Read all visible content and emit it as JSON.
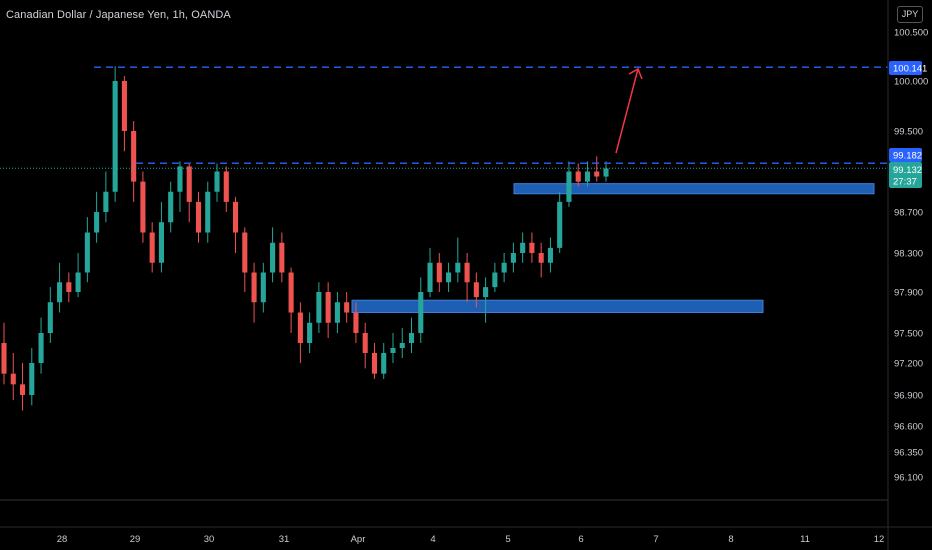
{
  "title": "Canadian Dollar / Japanese Yen, 1h, OANDA",
  "currency_label": "JPY",
  "chart_data": {
    "type": "candlestick",
    "title": "Canadian Dollar / Japanese Yen, 1h, OANDA",
    "y_ticks": [
      100.5,
      100.0,
      99.5,
      98.7,
      98.3,
      97.9,
      97.5,
      97.2,
      96.9,
      96.6,
      96.35,
      96.1
    ],
    "y_tick_labels": [
      "100.500",
      "100.000",
      "99.500",
      "98.700",
      "98.300",
      "97.900",
      "97.500",
      "97.200",
      "96.900",
      "96.600",
      "96.350",
      "96.100"
    ],
    "x_tick_labels": [
      "28",
      "29",
      "30",
      "31",
      "Apr",
      "4",
      "5",
      "6",
      "7",
      "8",
      "11",
      "12"
    ],
    "badges": {
      "high_level": "100.141",
      "resistance_level": "99.182",
      "last_price": "99.132",
      "countdown": "27:37"
    },
    "horizontal_lines": [
      {
        "value": 100.141,
        "style": "dashed",
        "color": "#2962ff"
      },
      {
        "value": 99.182,
        "style": "dashed",
        "color": "#2962ff"
      }
    ],
    "zones": [
      {
        "from_date": "Apr 5",
        "to_date": "Apr 12",
        "low": 98.88,
        "high": 98.98,
        "color": "#1e5fb4"
      },
      {
        "from_date": "Apr 1",
        "to_date": "Apr 8",
        "low": 97.7,
        "high": 97.82,
        "color": "#1e5fb4"
      }
    ],
    "annotation": {
      "type": "arrow",
      "color": "#f23645",
      "direction": "up"
    },
    "colors": {
      "up": "#26a69a",
      "down": "#ef5350",
      "background": "#000000"
    },
    "candles": [
      [
        97.4,
        97.1,
        97.6,
        97.0
      ],
      [
        97.1,
        97.0,
        97.3,
        96.85
      ],
      [
        97.0,
        96.9,
        97.2,
        96.75
      ],
      [
        96.9,
        97.2,
        97.35,
        96.8
      ],
      [
        97.2,
        97.5,
        97.65,
        97.1
      ],
      [
        97.5,
        97.8,
        97.95,
        97.4
      ],
      [
        97.8,
        98.0,
        98.2,
        97.7
      ],
      [
        98.0,
        97.9,
        98.1,
        97.8
      ],
      [
        97.9,
        98.1,
        98.3,
        97.85
      ],
      [
        98.1,
        98.5,
        98.65,
        98.0
      ],
      [
        98.5,
        98.7,
        98.9,
        98.4
      ],
      [
        98.7,
        98.9,
        99.1,
        98.6
      ],
      [
        98.9,
        100.0,
        100.15,
        98.8
      ],
      [
        100.0,
        99.5,
        100.05,
        99.3
      ],
      [
        99.5,
        99.0,
        99.6,
        98.8
      ],
      [
        99.0,
        98.5,
        99.1,
        98.4
      ],
      [
        98.5,
        98.2,
        98.6,
        98.1
      ],
      [
        98.2,
        98.6,
        98.8,
        98.1
      ],
      [
        98.6,
        98.9,
        99.0,
        98.5
      ],
      [
        98.9,
        99.15,
        99.2,
        98.7
      ],
      [
        99.15,
        98.8,
        99.18,
        98.6
      ],
      [
        98.8,
        98.5,
        98.9,
        98.4
      ],
      [
        98.5,
        98.9,
        99.0,
        98.4
      ],
      [
        98.9,
        99.1,
        99.18,
        98.8
      ],
      [
        99.1,
        98.8,
        99.15,
        98.7
      ],
      [
        98.8,
        98.5,
        98.85,
        98.3
      ],
      [
        98.5,
        98.1,
        98.55,
        97.9
      ],
      [
        98.1,
        97.8,
        98.2,
        97.6
      ],
      [
        97.8,
        98.1,
        98.2,
        97.7
      ],
      [
        98.1,
        98.4,
        98.55,
        98.0
      ],
      [
        98.4,
        98.1,
        98.5,
        98.0
      ],
      [
        98.1,
        97.7,
        98.15,
        97.5
      ],
      [
        97.7,
        97.4,
        97.8,
        97.2
      ],
      [
        97.4,
        97.6,
        97.7,
        97.3
      ],
      [
        97.6,
        97.9,
        98.0,
        97.5
      ],
      [
        97.9,
        97.6,
        98.0,
        97.45
      ],
      [
        97.6,
        97.8,
        97.9,
        97.5
      ],
      [
        97.8,
        97.7,
        97.9,
        97.6
      ],
      [
        97.7,
        97.5,
        97.8,
        97.4
      ],
      [
        97.5,
        97.3,
        97.6,
        97.15
      ],
      [
        97.3,
        97.1,
        97.4,
        97.05
      ],
      [
        97.1,
        97.3,
        97.4,
        97.05
      ],
      [
        97.3,
        97.35,
        97.5,
        97.2
      ],
      [
        97.35,
        97.4,
        97.55,
        97.25
      ],
      [
        97.4,
        97.5,
        97.65,
        97.3
      ],
      [
        97.5,
        97.9,
        98.05,
        97.4
      ],
      [
        97.9,
        98.2,
        98.35,
        97.85
      ],
      [
        98.2,
        98.0,
        98.3,
        97.9
      ],
      [
        98.0,
        98.1,
        98.2,
        97.9
      ],
      [
        98.1,
        98.2,
        98.45,
        98.0
      ],
      [
        98.2,
        98.0,
        98.3,
        97.8
      ],
      [
        98.0,
        97.85,
        98.1,
        97.75
      ],
      [
        97.85,
        97.95,
        98.05,
        97.6
      ],
      [
        97.95,
        98.1,
        98.2,
        97.9
      ],
      [
        98.1,
        98.2,
        98.3,
        98.0
      ],
      [
        98.2,
        98.3,
        98.4,
        98.1
      ],
      [
        98.3,
        98.4,
        98.5,
        98.2
      ],
      [
        98.4,
        98.3,
        98.5,
        98.2
      ],
      [
        98.3,
        98.2,
        98.4,
        98.05
      ],
      [
        98.2,
        98.35,
        98.45,
        98.1
      ],
      [
        98.35,
        98.8,
        98.9,
        98.3
      ],
      [
        98.8,
        99.1,
        99.2,
        98.75
      ],
      [
        99.1,
        99.0,
        99.18,
        98.95
      ],
      [
        99.0,
        99.1,
        99.2,
        98.95
      ],
      [
        99.1,
        99.05,
        99.25,
        99.0
      ],
      [
        99.05,
        99.13,
        99.2,
        99.0
      ]
    ]
  }
}
